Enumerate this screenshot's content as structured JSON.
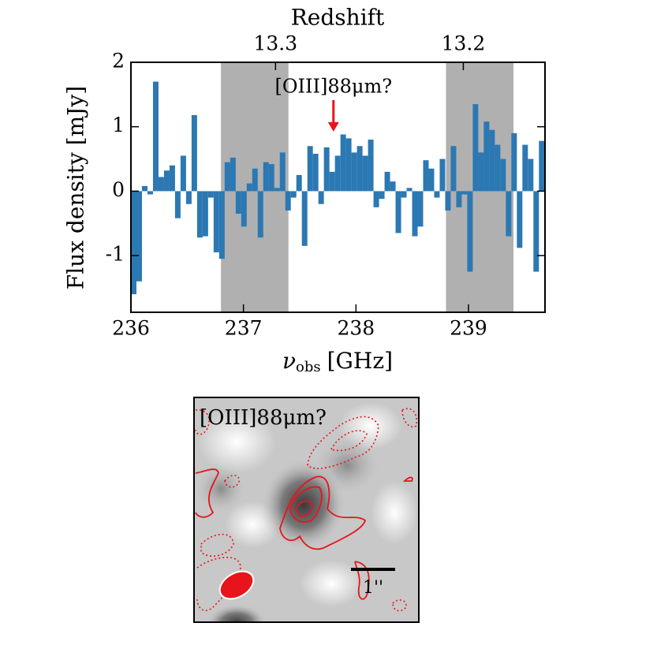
{
  "chart_data": {
    "type": "histogram",
    "x2label": "Redshift",
    "ylabel": "Flux density [mJy]",
    "xlabel": {
      "symbol": "ν",
      "subscript": "obs",
      "unit": "[GHz]"
    },
    "color": "#2b78b3",
    "shade_color": "#b0b0b0",
    "shaded_ranges": [
      [
        236.8,
        237.4
      ],
      [
        238.8,
        239.4
      ]
    ],
    "xlim": [
      236,
      239.68
    ],
    "ylim": [
      -1.88,
      2
    ],
    "xticks": [
      236,
      237,
      238,
      239
    ],
    "yticks": [
      -1,
      0,
      1,
      2
    ],
    "x2lim": [
      13.377,
      13.1565
    ],
    "x2ticks": [
      13.3,
      13.2
    ],
    "annotation": {
      "text": "[OIII]88μm?",
      "x": 237.8,
      "y": 0.9,
      "color": "#e8141c"
    },
    "bins": [
      236,
      236.049,
      236.098,
      236.147,
      236.196,
      236.245,
      236.294,
      236.343,
      236.392,
      236.441,
      236.49,
      236.539,
      236.588,
      236.637,
      236.686,
      236.735,
      236.784,
      236.833,
      236.882,
      236.931,
      236.98,
      237.029,
      237.078,
      237.127,
      237.176,
      237.225,
      237.274,
      237.323,
      237.372,
      237.421,
      237.47,
      237.519,
      237.568,
      237.617,
      237.666,
      237.715,
      237.764,
      237.813,
      237.862,
      237.911,
      237.96,
      238.009,
      238.058,
      238.107,
      238.156,
      238.205,
      238.254,
      238.303,
      238.352,
      238.401,
      238.45,
      238.499,
      238.548,
      238.597,
      238.646,
      238.695,
      238.744,
      238.793,
      238.842,
      238.891,
      238.94,
      238.989,
      239.038,
      239.087,
      239.136,
      239.185,
      239.234,
      239.283,
      239.332,
      239.381,
      239.43,
      239.479,
      239.528,
      239.577,
      239.626,
      239.675
    ],
    "values": [
      -1.6,
      -1.4,
      0.08,
      -0.05,
      1.7,
      0.22,
      0.32,
      0.4,
      -0.42,
      0.55,
      -0.2,
      1.18,
      -0.72,
      -0.7,
      -0.1,
      -0.95,
      -1.05,
      0.45,
      0.52,
      -0.35,
      -0.55,
      0.12,
      0.35,
      -0.72,
      0.45,
      0.42,
      0.05,
      0.6,
      -0.3,
      -0.1,
      0.25,
      -0.85,
      0.7,
      0.58,
      -0.2,
      0.68,
      0.3,
      0.55,
      0.88,
      0.82,
      0.6,
      0.7,
      0.55,
      0.8,
      -0.25,
      -0.12,
      0.3,
      0.15,
      -0.65,
      -0.1,
      0.05,
      -0.7,
      -0.55,
      0.48,
      0.35,
      -0.1,
      0.5,
      -0.3,
      0.7,
      -0.25,
      -0.05,
      -1.25,
      1.35,
      0.6,
      1.08,
      0.95,
      0.72,
      0.5,
      -0.7,
      0.9,
      -0.88,
      0.72,
      0.5,
      -1.25,
      0.78
    ]
  },
  "image": {
    "label": "[OIII]88μm?",
    "scalebar_label": "1''"
  }
}
